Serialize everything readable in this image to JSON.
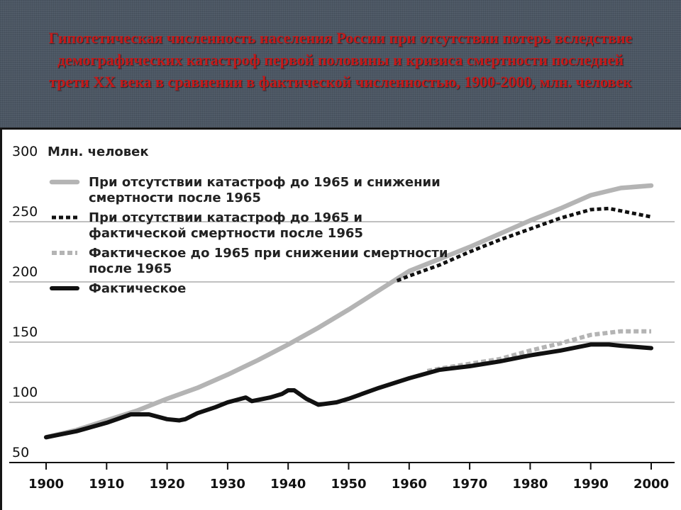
{
  "title": "Гипотетическая численность населения России при отсутствии потерь вследствие демографических катастроф первой половины и кризиса смертности последней трети XX века в сравнении в фактической численностью, 1900-2000, млн. человек",
  "colors": {
    "header_bg": "#4b5663",
    "title": "#c41a1a",
    "grid": "#9a9a9a"
  },
  "chart_data": {
    "type": "line",
    "ylabel": "Млн. человек",
    "xlim": [
      1900,
      2000
    ],
    "ylim": [
      50,
      300
    ],
    "x_ticks": [
      1900,
      1910,
      1920,
      1930,
      1940,
      1950,
      1960,
      1970,
      1980,
      1990,
      2000
    ],
    "y_ticks": [
      50,
      100,
      150,
      200,
      250,
      300
    ],
    "grid": "horizontal",
    "legend_position": "top-left",
    "series": [
      {
        "name": "При отсутствии катастроф до 1965 и снижении смертности после 1965",
        "style": "solid",
        "color": "#b4b4b4",
        "points": [
          [
            1900,
            71
          ],
          [
            1905,
            77
          ],
          [
            1910,
            85
          ],
          [
            1915,
            93
          ],
          [
            1920,
            103
          ],
          [
            1925,
            112
          ],
          [
            1930,
            123
          ],
          [
            1935,
            135
          ],
          [
            1940,
            148
          ],
          [
            1945,
            162
          ],
          [
            1950,
            177
          ],
          [
            1955,
            193
          ],
          [
            1960,
            209
          ],
          [
            1965,
            219
          ],
          [
            1970,
            229
          ],
          [
            1975,
            240
          ],
          [
            1980,
            251
          ],
          [
            1985,
            261
          ],
          [
            1990,
            272
          ],
          [
            1995,
            278
          ],
          [
            2000,
            280
          ]
        ]
      },
      {
        "name": "При отсутствии катастроф до 1965 и фактической смертности после 1965",
        "style": "dotted",
        "color": "#111111",
        "points": [
          [
            1958,
            201
          ],
          [
            1960,
            205
          ],
          [
            1965,
            214
          ],
          [
            1970,
            225
          ],
          [
            1975,
            235
          ],
          [
            1980,
            244
          ],
          [
            1985,
            253
          ],
          [
            1990,
            260
          ],
          [
            1993,
            261
          ],
          [
            1995,
            259
          ],
          [
            2000,
            254
          ]
        ]
      },
      {
        "name": "Фактическое до 1965 при снижении смертности после 1965",
        "style": "dotted",
        "color": "#b4b4b4",
        "points": [
          [
            1963,
            126
          ],
          [
            1965,
            128
          ],
          [
            1970,
            132
          ],
          [
            1975,
            136
          ],
          [
            1980,
            143
          ],
          [
            1985,
            149
          ],
          [
            1990,
            156
          ],
          [
            1995,
            159
          ],
          [
            2000,
            159
          ]
        ]
      },
      {
        "name": "Фактическое",
        "style": "solid",
        "color": "#111111",
        "points": [
          [
            1900,
            71
          ],
          [
            1905,
            76
          ],
          [
            1910,
            83
          ],
          [
            1914,
            90
          ],
          [
            1917,
            90
          ],
          [
            1920,
            86
          ],
          [
            1922,
            85
          ],
          [
            1923,
            86
          ],
          [
            1925,
            91
          ],
          [
            1928,
            96
          ],
          [
            1930,
            100
          ],
          [
            1933,
            104
          ],
          [
            1934,
            101
          ],
          [
            1937,
            104
          ],
          [
            1939,
            107
          ],
          [
            1940,
            110
          ],
          [
            1941,
            110
          ],
          [
            1943,
            103
          ],
          [
            1945,
            98
          ],
          [
            1948,
            100
          ],
          [
            1950,
            103
          ],
          [
            1955,
            112
          ],
          [
            1960,
            120
          ],
          [
            1965,
            127
          ],
          [
            1970,
            130
          ],
          [
            1975,
            134
          ],
          [
            1980,
            139
          ],
          [
            1985,
            143
          ],
          [
            1990,
            148
          ],
          [
            1993,
            148
          ],
          [
            1995,
            147
          ],
          [
            2000,
            145
          ]
        ]
      }
    ]
  }
}
